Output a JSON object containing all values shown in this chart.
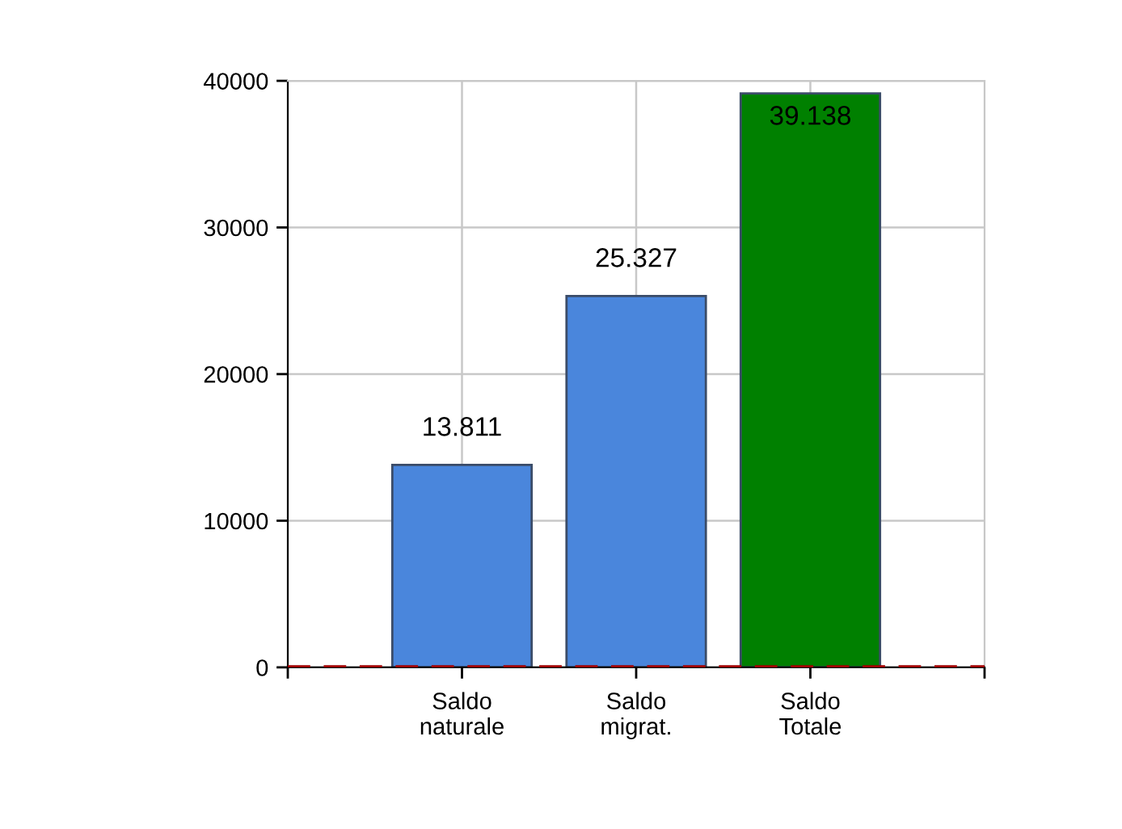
{
  "chart_data": {
    "type": "bar",
    "categories": [
      "Saldo\nnaturale",
      "Saldo\nmigrat.",
      "Saldo\nTotale"
    ],
    "values": [
      13811,
      25327,
      39138
    ],
    "colors": [
      "#4a86dc",
      "#4a86dc",
      "#008000"
    ],
    "value_labels": [
      "13.811",
      "25.327",
      "39.138"
    ],
    "ylim": [
      0,
      40000
    ],
    "yticks": [
      0,
      10000,
      20000,
      30000,
      40000
    ],
    "grid": true,
    "ref_lines": [
      {
        "axis": "y",
        "value": 0,
        "color": "#a00000",
        "line_style": "dashed"
      }
    ]
  }
}
